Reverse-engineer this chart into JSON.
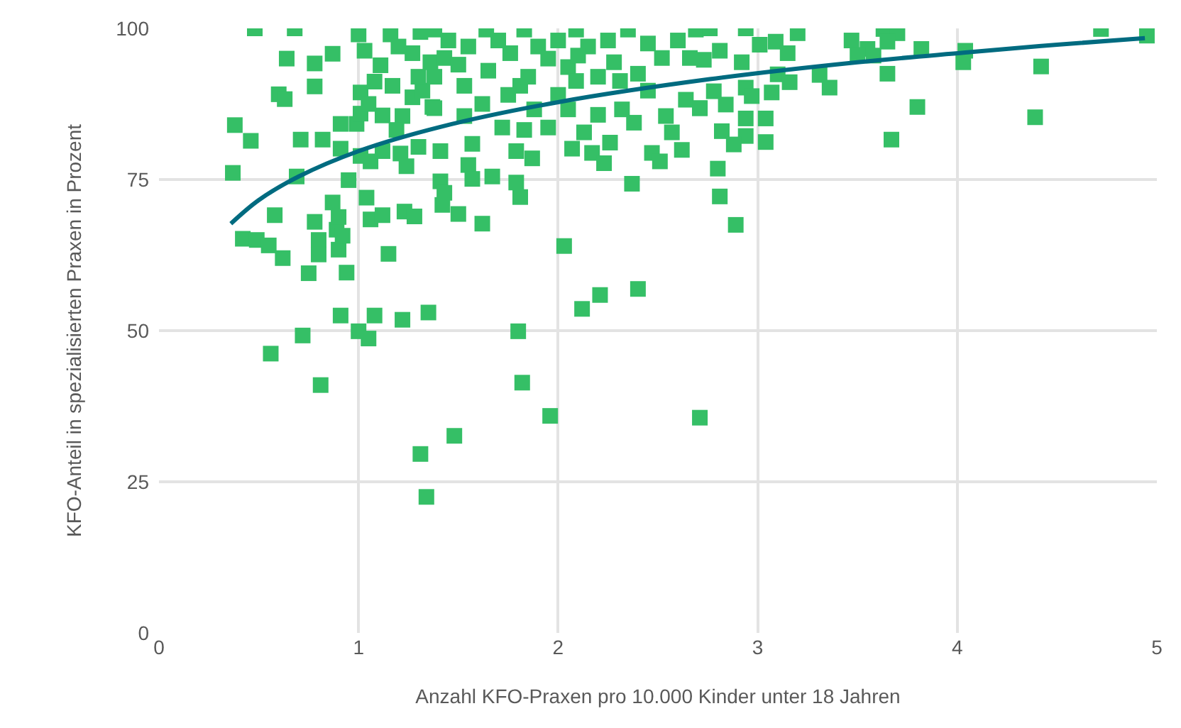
{
  "chart_data": {
    "type": "scatter",
    "xlabel": "Anzahl KFO-Praxen pro 10.000 Kinder unter 18 Jahren",
    "ylabel": "KFO-Anteil in spezialisierten Praxen in Prozent",
    "xlim": [
      0,
      5
    ],
    "xticks": [
      0,
      1,
      2,
      3,
      4,
      5
    ],
    "ylim": [
      0,
      100
    ],
    "yticks": [
      0,
      25,
      50,
      75,
      100
    ],
    "grid": true,
    "series": [
      {
        "marker": "square",
        "color": "#35bf66",
        "x": [
          0.48,
          0.68,
          0.64,
          0.87,
          0.78,
          0.6,
          0.63,
          0.78,
          0.38,
          0.46,
          0.71,
          0.82,
          0.37,
          0.69,
          0.95,
          0.58,
          0.78,
          0.42,
          0.49,
          0.55,
          0.62,
          0.8,
          0.8,
          0.75,
          0.94,
          0.9,
          0.89,
          0.92,
          0.87,
          0.9,
          1.04,
          1.06,
          1.12,
          1.23,
          1.28,
          1.15,
          0.91,
          1.08,
          1.22,
          1.35,
          0.72,
          1.0,
          1.05,
          0.56,
          0.81,
          1.01,
          1.06,
          1.12,
          1.21,
          1.24,
          0.91,
          0.91,
          0.99,
          1.01,
          1.12,
          1.22,
          1.19,
          1.3,
          1.37,
          1.27,
          1.32,
          1.01,
          1.05,
          1.08,
          1.11,
          1.17,
          1.03,
          1.0,
          1.16,
          1.27,
          1.36,
          1.31,
          1.38,
          1.38,
          1.64,
          1.83,
          2.09,
          2.35,
          2.69,
          1.43,
          1.76,
          2.05,
          2.28,
          2.52,
          2.66,
          1.53,
          1.81,
          2.09,
          2.31,
          2.45,
          2.64,
          2.71,
          1.38,
          1.62,
          1.88,
          2.05,
          2.32,
          1.53,
          1.72,
          1.83,
          1.95,
          2.13,
          2.2,
          2.38,
          2.54,
          2.57,
          1.41,
          1.57,
          1.79,
          1.87,
          2.07,
          2.17,
          2.26,
          2.23,
          2.47,
          2.51,
          2.62,
          1.55,
          1.57,
          1.67,
          1.41,
          1.79,
          2.37,
          1.43,
          1.81,
          1.42,
          1.5,
          1.62,
          2.03,
          2.4,
          2.21,
          2.12,
          1.8,
          1.82,
          1.96,
          2.71,
          1.31,
          1.34,
          1.48,
          2.76,
          2.94,
          3.2,
          3.63,
          3.7,
          4.72,
          4.95,
          2.81,
          3.01,
          3.09,
          3.15,
          3.47,
          3.55,
          3.65,
          3.82,
          4.04,
          4.03,
          4.42,
          2.92,
          2.73,
          3.5,
          3.58,
          3.1,
          3.16,
          3.31,
          3.36,
          3.65,
          2.94,
          2.78,
          2.97,
          3.07,
          2.71,
          2.84,
          3.8,
          2.94,
          3.04,
          4.39,
          2.82,
          2.94,
          2.88,
          3.04,
          3.67,
          2.8,
          2.81,
          2.89,
          1.2,
          1.45,
          1.55,
          1.7,
          1.9,
          2.0,
          2.15,
          2.25,
          2.45,
          2.6,
          1.65,
          1.95,
          2.2,
          1.75,
          2.0,
          2.4,
          1.3,
          1.5,
          1.85,
          2.1
        ],
        "values": [
          100,
          100,
          95,
          95.8,
          94.2,
          89.1,
          88.3,
          90.4,
          84,
          81.4,
          81.6,
          81.6,
          76.1,
          75.5,
          74.9,
          69.1,
          68,
          65.2,
          65,
          64.1,
          62,
          65,
          62.6,
          59.5,
          59.6,
          63.4,
          66.7,
          65.7,
          71.2,
          68.8,
          72,
          68.4,
          69.1,
          69.7,
          68.9,
          62.7,
          52.5,
          52.5,
          51.8,
          53,
          49.2,
          49.9,
          48.7,
          46.2,
          41,
          78.9,
          78,
          79.7,
          79.3,
          77.2,
          80.1,
          84.2,
          84.2,
          85.9,
          85.6,
          85.5,
          83.2,
          80.4,
          87,
          88.6,
          89.7,
          89.4,
          87.5,
          91.2,
          93.9,
          90.5,
          96.3,
          99,
          99,
          95.9,
          94.4,
          99.4,
          92,
          99.8,
          99.8,
          99.8,
          99.8,
          99.8,
          99.8,
          95.1,
          95.9,
          93.6,
          94.4,
          95.1,
          95.1,
          90.5,
          90.5,
          91.3,
          91.3,
          89.7,
          88.2,
          86.8,
          86.8,
          87.5,
          86.6,
          86.6,
          86.6,
          85.5,
          83.6,
          83.2,
          83.6,
          82.8,
          85.7,
          84.4,
          85.5,
          82.8,
          79.7,
          80.9,
          79.7,
          78.5,
          80.1,
          79.4,
          81.1,
          77.7,
          79.4,
          78,
          79.9,
          77.4,
          75.1,
          75.5,
          74.7,
          74.5,
          74.3,
          72.8,
          72.1,
          70.8,
          69.3,
          67.7,
          64,
          56.9,
          55.9,
          53.6,
          49.9,
          41.4,
          35.9,
          35.6,
          29.6,
          22.5,
          32.6,
          100,
          100,
          99.2,
          99.9,
          99.2,
          99.9,
          98.8,
          96.3,
          97.3,
          97.8,
          95.9,
          98,
          96.6,
          97.8,
          96.6,
          96.3,
          94.4,
          93.7,
          94.4,
          94.8,
          95.6,
          95.5,
          92.4,
          91.1,
          92.3,
          90.2,
          92.5,
          90.2,
          89.6,
          88.8,
          89.4,
          86.8,
          87.4,
          87,
          85.1,
          85.1,
          85.3,
          83,
          82.2,
          80.8,
          81.2,
          81.6,
          76.8,
          72.2,
          67.5,
          97,
          98,
          97,
          98,
          97,
          98,
          97,
          98,
          97.5,
          98,
          93,
          95,
          92,
          89,
          89,
          92.5,
          92,
          94,
          92,
          95.5
        ]
      },
      {
        "type": "line",
        "marker": "none",
        "line_style": "solid",
        "color": "#006b80",
        "x": [
          0.36,
          0.5,
          0.7,
          1.0,
          1.41,
          2.0,
          2.76,
          3.5,
          4.04,
          4.5,
          4.94
        ],
        "values": [
          67.7,
          71.6,
          75.5,
          79.7,
          83.7,
          87.8,
          91.6,
          94.4,
          96.0,
          97.3,
          98.4
        ]
      }
    ]
  }
}
